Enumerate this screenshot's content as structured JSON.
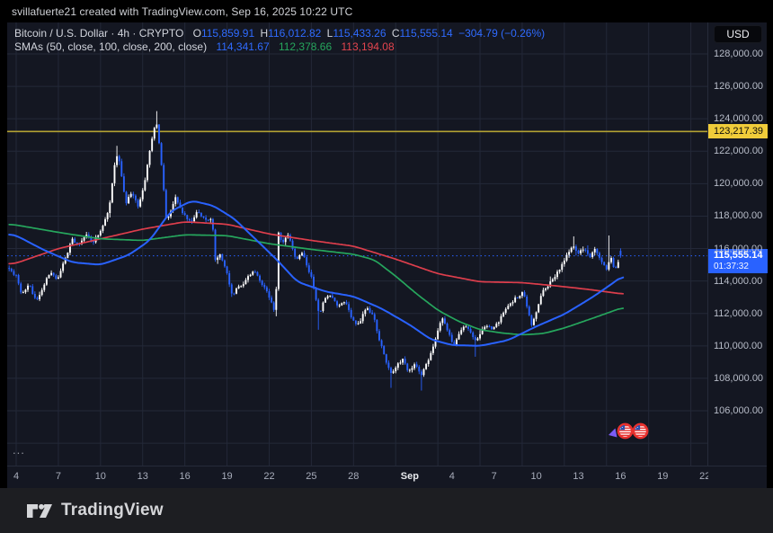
{
  "attribution": "svillafuerte21 created with TradingView.com, Sep 16, 2025 10:22 UTC",
  "currency_button_label": "USD",
  "legend": {
    "title": "Bitcoin / U.S. Dollar · 4h · CRYPTO",
    "ohlc": {
      "o_label": "O",
      "o": "115,859.91",
      "h_label": "H",
      "h": "116,012.82",
      "l_label": "L",
      "l": "115,433.26",
      "c_label": "C",
      "c": "115,555.14",
      "change": "−304.79 (−0.26%)"
    },
    "smas_label": "SMAs (50, close, 100, close, 200, close)",
    "sma50_value": "114,341.67",
    "sma100_value": "112,378.66",
    "sma200_value": "113,194.08"
  },
  "more_button": "...",
  "logo_text": "TradingView",
  "price_axis": {
    "labels": [
      {
        "value": 128000,
        "text": "128,000.00"
      },
      {
        "value": 126000,
        "text": "126,000.00"
      },
      {
        "value": 124000,
        "text": "124,000.00"
      },
      {
        "value": 122000,
        "text": "122,000.00"
      },
      {
        "value": 120000,
        "text": "120,000.00"
      },
      {
        "value": 118000,
        "text": "118,000.00"
      },
      {
        "value": 116000,
        "text": "116,000.00"
      },
      {
        "value": 114000,
        "text": "114,000.00"
      },
      {
        "value": 112000,
        "text": "112,000.00"
      },
      {
        "value": 110000,
        "text": "110,000.00"
      },
      {
        "value": 108000,
        "text": "108,000.00"
      },
      {
        "value": 106000,
        "text": "106,000.00"
      }
    ],
    "level_badge": {
      "text": "123,217.39",
      "value": 123217.39
    },
    "price_badge": {
      "text": "115,555.14",
      "countdown": "01:37:32",
      "value": 115555.14
    }
  },
  "time_axis": {
    "labels": [
      {
        "d": 0,
        "text": "4"
      },
      {
        "d": 3,
        "text": "7"
      },
      {
        "d": 6,
        "text": "10"
      },
      {
        "d": 9,
        "text": "13"
      },
      {
        "d": 12,
        "text": "16"
      },
      {
        "d": 15,
        "text": "19"
      },
      {
        "d": 18,
        "text": "22"
      },
      {
        "d": 21,
        "text": "25"
      },
      {
        "d": 24,
        "text": "28"
      },
      {
        "d": 28,
        "text": "Sep",
        "strong": true
      },
      {
        "d": 31,
        "text": "4"
      },
      {
        "d": 34,
        "text": "7"
      },
      {
        "d": 37,
        "text": "10"
      },
      {
        "d": 40,
        "text": "13"
      },
      {
        "d": 43,
        "text": "16"
      },
      {
        "d": 46,
        "text": "19"
      },
      {
        "d": 49,
        "text": "22"
      }
    ]
  },
  "colors": {
    "background": "#141722",
    "grid": "#232838",
    "candle_up": "#ffffff",
    "candle_down": "#2962ff",
    "sma50": "#2962ff",
    "sma100": "#26a65d",
    "sma200": "#dd3e4c",
    "level_line": "#b3a233",
    "level_badge_bg": "#f0cc3a",
    "price_line": "#2962ff",
    "price_badge_bg": "#2962ff",
    "flag_ring": "#e8312e",
    "arrow_marker": "#7b5cf5"
  },
  "chart_data": {
    "type": "candlestick",
    "title": "Bitcoin / U.S. Dollar",
    "interval": "4h",
    "exchange": "CRYPTO",
    "y_axis": {
      "min": 106000,
      "max": 128000,
      "step": 2000,
      "grid_min": 104000
    },
    "x_axis": {
      "start_label": "Aug 4",
      "end_label": "Sep 22",
      "tick_step_days": 3
    },
    "level_line_price": 123217.39,
    "current_price": 115555.14,
    "countdown": "01:37:32",
    "last_candle": {
      "o": 115859.91,
      "h": 116012.82,
      "l": 115433.26,
      "c": 115555.14
    },
    "session_high": 124474,
    "session_low": 107245,
    "price_path": [
      [
        -0.5,
        114800
      ],
      [
        0,
        114300
      ],
      [
        0.4,
        113100
      ],
      [
        0.9,
        113900
      ],
      [
        1.4,
        112750
      ],
      [
        1.9,
        113600
      ],
      [
        2.4,
        114550
      ],
      [
        2.9,
        114050
      ],
      [
        3.5,
        115400
      ],
      [
        4,
        116600
      ],
      [
        4.4,
        116250
      ],
      [
        5,
        116900
      ],
      [
        5.5,
        116400
      ],
      [
        6,
        117100
      ],
      [
        6.6,
        118400
      ],
      [
        7.1,
        121900
      ],
      [
        7.35,
        121300
      ],
      [
        7.8,
        118700
      ],
      [
        8.2,
        119500
      ],
      [
        8.7,
        118500
      ],
      [
        9.2,
        120400
      ],
      [
        9.6,
        122600
      ],
      [
        9.95,
        123900
      ],
      [
        10.15,
        122600
      ],
      [
        10.45,
        120200
      ],
      [
        10.7,
        117600
      ],
      [
        11.1,
        118600
      ],
      [
        11.35,
        119200
      ],
      [
        11.8,
        118300
      ],
      [
        12.4,
        117600
      ],
      [
        12.9,
        118300
      ],
      [
        13.5,
        117700
      ],
      [
        13.95,
        117900
      ],
      [
        14.15,
        115300
      ],
      [
        14.5,
        115700
      ],
      [
        15,
        114500
      ],
      [
        15.35,
        113100
      ],
      [
        15.7,
        113500
      ],
      [
        16.2,
        113900
      ],
      [
        16.9,
        114700
      ],
      [
        17.4,
        114000
      ],
      [
        17.9,
        113200
      ],
      [
        18.3,
        112300
      ],
      [
        18.45,
        112000
      ],
      [
        18.62,
        117200
      ],
      [
        18.9,
        116400
      ],
      [
        19.4,
        116800
      ],
      [
        19.9,
        115300
      ],
      [
        20.4,
        115700
      ],
      [
        21,
        114200
      ],
      [
        21.55,
        111900
      ],
      [
        21.9,
        112900
      ],
      [
        22.4,
        113200
      ],
      [
        22.9,
        112400
      ],
      [
        23.4,
        112800
      ],
      [
        23.9,
        111600
      ],
      [
        24.4,
        111300
      ],
      [
        24.9,
        112400
      ],
      [
        25.4,
        111900
      ],
      [
        25.9,
        110200
      ],
      [
        26.35,
        108900
      ],
      [
        26.7,
        108300
      ],
      [
        27.1,
        108800
      ],
      [
        27.5,
        109200
      ],
      [
        27.9,
        108400
      ],
      [
        28.4,
        108900
      ],
      [
        28.8,
        108150
      ],
      [
        29.1,
        108700
      ],
      [
        29.5,
        109500
      ],
      [
        29.9,
        110600
      ],
      [
        30.3,
        111700
      ],
      [
        30.7,
        111000
      ],
      [
        31.1,
        109900
      ],
      [
        31.5,
        110700
      ],
      [
        31.9,
        111300
      ],
      [
        32.3,
        110800
      ],
      [
        32.7,
        110300
      ],
      [
        33.1,
        110900
      ],
      [
        33.5,
        111300
      ],
      [
        33.9,
        111000
      ],
      [
        34.4,
        111600
      ],
      [
        34.9,
        112300
      ],
      [
        35.5,
        112900
      ],
      [
        36.1,
        113300
      ],
      [
        36.45,
        112000
      ],
      [
        36.7,
        111200
      ],
      [
        37,
        112100
      ],
      [
        37.45,
        113400
      ],
      [
        38,
        113900
      ],
      [
        38.5,
        114500
      ],
      [
        39,
        115300
      ],
      [
        39.6,
        116250
      ],
      [
        40,
        115700
      ],
      [
        40.4,
        116000
      ],
      [
        40.8,
        115500
      ],
      [
        41.2,
        115950
      ],
      [
        41.6,
        115350
      ],
      [
        42,
        114750
      ],
      [
        42.3,
        115600
      ],
      [
        42.55,
        114600
      ],
      [
        42.85,
        115200
      ],
      [
        43,
        115555.14
      ]
    ],
    "wick_events": [
      {
        "d": 7.1,
        "high": 122335
      },
      {
        "d": 9.95,
        "high": 124474
      },
      {
        "d": 39.6,
        "high": 116753
      },
      {
        "d": 42.15,
        "high": 116808
      },
      {
        "d": 18.45,
        "low": 111825
      },
      {
        "d": 21.55,
        "low": 110995
      },
      {
        "d": 26.7,
        "low": 107413
      },
      {
        "d": 28.8,
        "low": 107245
      },
      {
        "d": 32.7,
        "low": 109330
      }
    ],
    "series": [
      {
        "name": "SMA 50",
        "color_key": "sma50",
        "last_value": 114341.67,
        "path": [
          [
            -0.5,
            116900
          ],
          [
            0,
            116800
          ],
          [
            2,
            115900
          ],
          [
            4,
            115150
          ],
          [
            6,
            115000
          ],
          [
            8,
            115600
          ],
          [
            9.5,
            116500
          ],
          [
            11,
            118300
          ],
          [
            12.5,
            118950
          ],
          [
            14,
            118650
          ],
          [
            15.5,
            117850
          ],
          [
            17,
            116600
          ],
          [
            18.5,
            115350
          ],
          [
            20,
            113950
          ],
          [
            22,
            113350
          ],
          [
            24,
            113050
          ],
          [
            26,
            112300
          ],
          [
            28,
            111300
          ],
          [
            29.5,
            110400
          ],
          [
            31,
            110050
          ],
          [
            33,
            110000
          ],
          [
            35,
            110350
          ],
          [
            37,
            111200
          ],
          [
            39,
            111950
          ],
          [
            41,
            113000
          ],
          [
            42.5,
            113900
          ],
          [
            43.2,
            114341.67
          ]
        ]
      },
      {
        "name": "SMA 100",
        "color_key": "sma100",
        "last_value": 112378.66,
        "path": [
          [
            -0.5,
            117500
          ],
          [
            0,
            117450
          ],
          [
            3,
            117000
          ],
          [
            6,
            116600
          ],
          [
            9,
            116500
          ],
          [
            12,
            116850
          ],
          [
            15,
            116800
          ],
          [
            18,
            116300
          ],
          [
            21,
            115950
          ],
          [
            24,
            115650
          ],
          [
            25.5,
            115300
          ],
          [
            27,
            114300
          ],
          [
            28.5,
            113200
          ],
          [
            30,
            112200
          ],
          [
            31.5,
            111500
          ],
          [
            33,
            111000
          ],
          [
            34.5,
            110800
          ],
          [
            36,
            110680
          ],
          [
            37.5,
            110760
          ],
          [
            39,
            111100
          ],
          [
            41,
            111700
          ],
          [
            43.2,
            112378.66
          ]
        ]
      },
      {
        "name": "SMA 200",
        "color_key": "sma200",
        "last_value": 113194.08,
        "path": [
          [
            -0.5,
            115050
          ],
          [
            0,
            115100
          ],
          [
            3,
            116000
          ],
          [
            6,
            116600
          ],
          [
            9,
            117200
          ],
          [
            12,
            117650
          ],
          [
            15,
            117500
          ],
          [
            18,
            116900
          ],
          [
            21,
            116500
          ],
          [
            24,
            116150
          ],
          [
            27,
            115350
          ],
          [
            30,
            114450
          ],
          [
            33,
            113950
          ],
          [
            36,
            113900
          ],
          [
            39,
            113650
          ],
          [
            41,
            113450
          ],
          [
            43.2,
            113194.08
          ]
        ]
      }
    ],
    "event_markers": {
      "type": "us-economic-event-flags",
      "count": 2
    }
  }
}
